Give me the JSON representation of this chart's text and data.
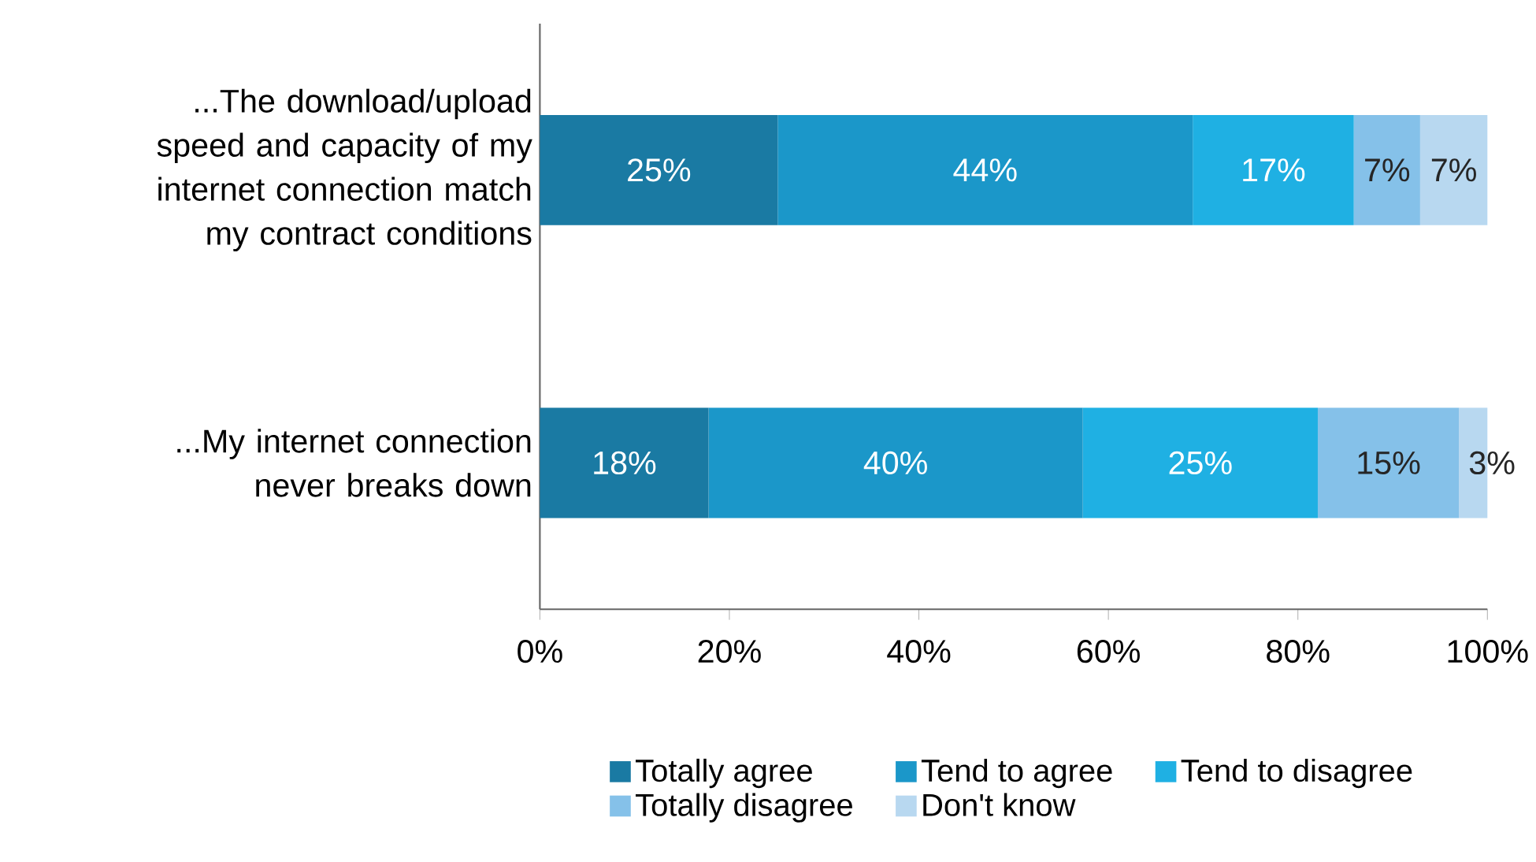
{
  "chart_data": {
    "type": "bar",
    "orientation": "horizontal",
    "stacked": true,
    "categories": [
      "...The download/upload speed and capacity of my internet connection match my contract conditions",
      "...My internet connection never breaks down"
    ],
    "series": [
      {
        "name": "Totally agree",
        "color": "#1a7aa3",
        "values": [
          25.1,
          17.8
        ],
        "value_labels": [
          "25%",
          "18%"
        ]
      },
      {
        "name": "Tend to agree",
        "color": "#1b97c9",
        "values": [
          43.8,
          39.5
        ],
        "value_labels": [
          "44%",
          "40%"
        ]
      },
      {
        "name": "Tend to disagree",
        "color": "#1fb0e3",
        "values": [
          17.0,
          24.8
        ],
        "value_labels": [
          "17%",
          "25%"
        ]
      },
      {
        "name": "Totally disagree",
        "color": "#85c1e9",
        "values": [
          7.0,
          14.9
        ],
        "value_labels": [
          "7%",
          "15%"
        ]
      },
      {
        "name": "Don't know",
        "color": "#b8d8f0",
        "values": [
          7.1,
          3.0
        ],
        "value_labels": [
          "7%",
          "3%"
        ]
      }
    ],
    "xlim": [
      0,
      100
    ],
    "xticks": [
      {
        "value": 0,
        "label": "0%"
      },
      {
        "value": 20,
        "label": "20%"
      },
      {
        "value": 40,
        "label": "40%"
      },
      {
        "value": 60,
        "label": "60%"
      },
      {
        "value": 80,
        "label": "80%"
      },
      {
        "value": 100,
        "label": "100%"
      }
    ],
    "grid": false,
    "legend": "bottom"
  }
}
